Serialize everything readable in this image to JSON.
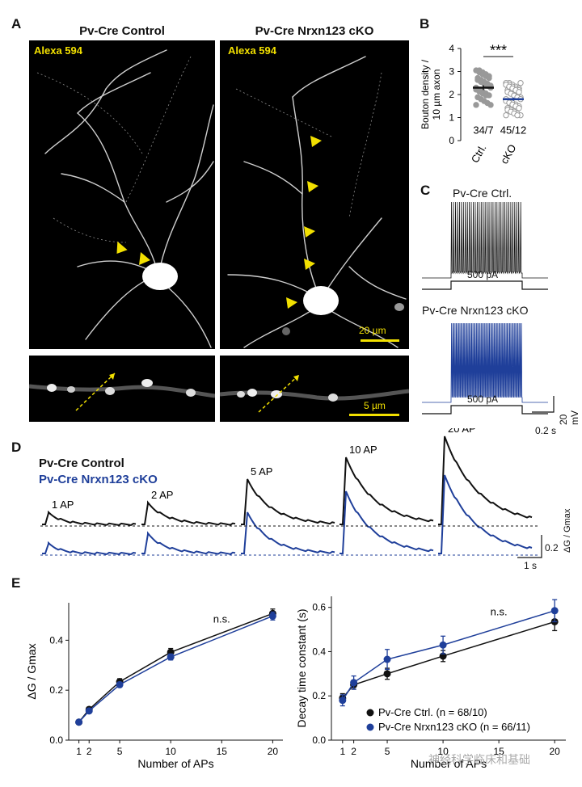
{
  "panels": {
    "A": "A",
    "B": "B",
    "C": "C",
    "D": "D",
    "E": "E"
  },
  "panel_a": {
    "title_left": "Pv-Cre Control",
    "title_right": "Pv-Cre Nrxn123 cKO",
    "stain_left": "Alexa 594",
    "stain_right": "Alexa 594",
    "scale_top": "20 µm",
    "scale_bottom": "5 µm"
  },
  "panel_c": {
    "title_ctrl": "Pv-Cre Ctrl.",
    "title_cko": "Pv-Cre Nrxn123 cKO",
    "step_label_ctrl": "500 pA",
    "step_label_cko": "500 pA",
    "scale_v": "20 mV",
    "scale_t": "0.2 s",
    "colors": {
      "ctrl": "#111111",
      "cko": "#1f3f9a"
    }
  },
  "panel_d": {
    "legend_ctrl": "Pv-Cre Control",
    "legend_cko": "Pv-Cre Nrxn123 cKO",
    "labels": [
      "1 AP",
      "2 AP",
      "5 AP",
      "10 AP",
      "20 AP"
    ],
    "scale_y_value": "0.2",
    "scale_y_unit": "ΔG / Gmax",
    "scale_x": "1 s"
  },
  "chart_data": [
    {
      "type": "scatter",
      "panel": "B",
      "categories": [
        "Ctrl.",
        "cKO"
      ],
      "ylabel": "Bouton density / 10 µm axon",
      "ylim": [
        0,
        4
      ],
      "yticks": [
        0,
        1,
        2,
        3,
        4
      ],
      "means": [
        2.3,
        1.8
      ],
      "sem": [
        0.1,
        0.07
      ],
      "n_labels": [
        "34/7",
        "45/12"
      ],
      "significance": "***",
      "colors": [
        "#111111",
        "#1f3f9a"
      ]
    },
    {
      "type": "line",
      "panel": "E-left",
      "xlabel": "Number of APs",
      "ylabel": "ΔG / Gmax",
      "xticks": [
        1,
        2,
        5,
        10,
        15,
        20
      ],
      "yticks": [
        0.0,
        0.2,
        0.4
      ],
      "ylim": [
        0,
        0.55
      ],
      "xlim": [
        0,
        21
      ],
      "annotation": "n.s.",
      "series": [
        {
          "name": "Pv-Cre Ctrl. (n = 68/10)",
          "color": "#111111",
          "x": [
            1,
            2,
            5,
            10,
            20
          ],
          "y": [
            0.072,
            0.123,
            0.234,
            0.352,
            0.507
          ],
          "err": [
            0.006,
            0.008,
            0.012,
            0.015,
            0.018
          ]
        },
        {
          "name": "Pv-Cre Nrxn123 cKO (n = 66/11)",
          "color": "#1f3f9a",
          "x": [
            1,
            2,
            5,
            10,
            20
          ],
          "y": [
            0.072,
            0.117,
            0.222,
            0.333,
            0.497
          ],
          "err": [
            0.006,
            0.008,
            0.01,
            0.012,
            0.016
          ]
        }
      ]
    },
    {
      "type": "line",
      "panel": "E-right",
      "xlabel": "Number of APs",
      "ylabel": "Decay time constant (s)",
      "xticks": [
        1,
        2,
        5,
        10,
        15,
        20
      ],
      "yticks": [
        0.0,
        0.2,
        0.4,
        0.6
      ],
      "ylim": [
        0,
        0.65
      ],
      "xlim": [
        0,
        21
      ],
      "annotation": "n.s.",
      "legend": [
        "Pv-Cre Ctrl. (n = 68/10)",
        "Pv-Cre Nrxn123 cKO (n = 66/11)"
      ],
      "series": [
        {
          "name": "Pv-Cre Ctrl. (n = 68/10)",
          "color": "#111111",
          "x": [
            1,
            2,
            5,
            10,
            20
          ],
          "y": [
            0.19,
            0.25,
            0.3,
            0.38,
            0.535
          ],
          "err": [
            0.02,
            0.02,
            0.025,
            0.025,
            0.04
          ]
        },
        {
          "name": "Pv-Cre Nrxn123 cKO (n = 66/11)",
          "color": "#1f3f9a",
          "x": [
            1,
            2,
            5,
            10,
            20
          ],
          "y": [
            0.18,
            0.26,
            0.365,
            0.43,
            0.585
          ],
          "err": [
            0.025,
            0.03,
            0.045,
            0.04,
            0.05
          ]
        }
      ]
    }
  ],
  "watermark": "神经科学临床和基础"
}
